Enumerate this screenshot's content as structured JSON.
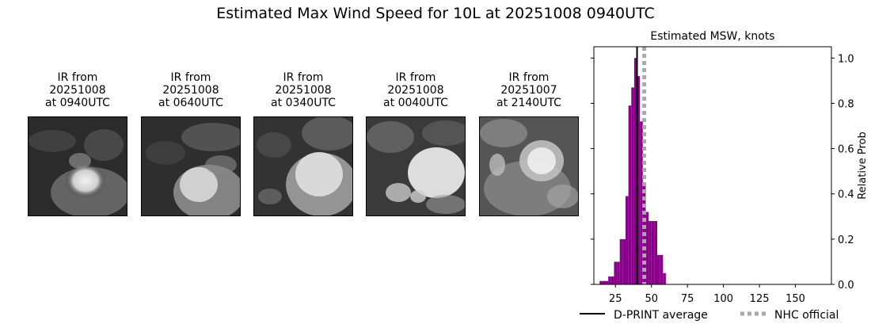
{
  "title": "Estimated Max Wind Speed for 10L at 20251008 0940UTC",
  "panels": [
    {
      "caption": "IR from\n20251008\nat 0940UTC"
    },
    {
      "caption": "IR from\n20251008\nat 0640UTC"
    },
    {
      "caption": "IR from\n20251008\nat 0340UTC"
    },
    {
      "caption": "IR from\n20251008\nat 0040UTC"
    },
    {
      "caption": "IR from\n20251007\nat 2140UTC"
    }
  ],
  "chart_data": {
    "type": "bar",
    "title": "Estimated MSW, knots",
    "xlabel": "",
    "ylabel": "Relative Prob",
    "xlim": [
      10,
      175
    ],
    "ylim": [
      0,
      1.05
    ],
    "xticks": [
      25,
      50,
      75,
      100,
      125,
      150
    ],
    "yticks": [
      0.0,
      0.2,
      0.4,
      0.6,
      0.8,
      1.0
    ],
    "ytick_labels": [
      "0.0",
      "0.2",
      "0.4",
      "0.6",
      "0.8",
      "1.0"
    ],
    "bin_width": 2,
    "bar_color": "#8b008b",
    "bins": [
      {
        "x": 15,
        "y": 0.015
      },
      {
        "x": 17,
        "y": 0.015
      },
      {
        "x": 19,
        "y": 0.015
      },
      {
        "x": 21,
        "y": 0.035
      },
      {
        "x": 23,
        "y": 0.035
      },
      {
        "x": 25,
        "y": 0.1
      },
      {
        "x": 27,
        "y": 0.1
      },
      {
        "x": 29,
        "y": 0.2
      },
      {
        "x": 31,
        "y": 0.2
      },
      {
        "x": 33,
        "y": 0.39
      },
      {
        "x": 35,
        "y": 0.79
      },
      {
        "x": 37,
        "y": 0.87
      },
      {
        "x": 39,
        "y": 1.0
      },
      {
        "x": 41,
        "y": 0.92
      },
      {
        "x": 43,
        "y": 0.72
      },
      {
        "x": 45,
        "y": 0.44
      },
      {
        "x": 47,
        "y": 0.32
      },
      {
        "x": 49,
        "y": 0.28
      },
      {
        "x": 51,
        "y": 0.28
      },
      {
        "x": 53,
        "y": 0.28
      },
      {
        "x": 55,
        "y": 0.13
      },
      {
        "x": 57,
        "y": 0.13
      },
      {
        "x": 59,
        "y": 0.05
      }
    ],
    "lines": [
      {
        "name": "D-PRINT average",
        "x": 40,
        "style": "solid",
        "color": "#000000"
      },
      {
        "name": "NHC official",
        "x": 45,
        "style": "dotted",
        "color": "#a9a9a9"
      }
    ],
    "legend_position": "bottom"
  }
}
